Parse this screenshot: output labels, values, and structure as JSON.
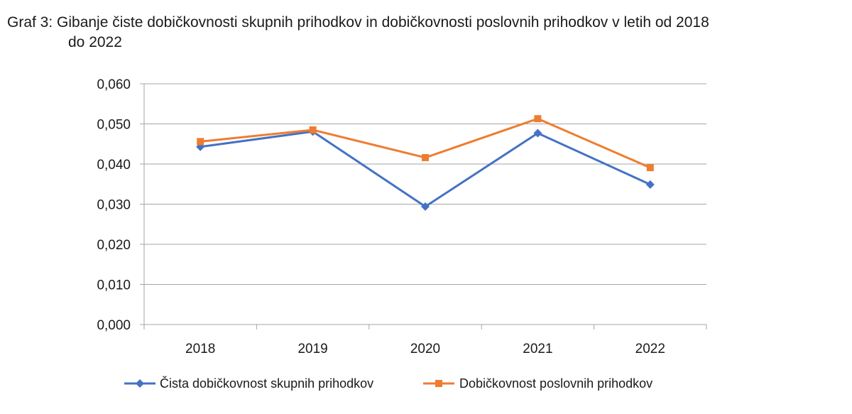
{
  "chart_data": {
    "type": "line",
    "title_line1": "Graf 3: Gibanje čiste dobičkovnosti skupnih prihodkov in dobičkovnosti poslovnih prihodkov v letih od 2018",
    "title_line2": "do 2022",
    "categories": [
      "2018",
      "2019",
      "2020",
      "2021",
      "2022"
    ],
    "ylim": [
      0,
      0.06
    ],
    "yticks": [
      0.0,
      0.01,
      0.02,
      0.03,
      0.04,
      0.05,
      0.06
    ],
    "ytick_labels": [
      "0,000",
      "0,010",
      "0,020",
      "0,030",
      "0,040",
      "0,050",
      "0,060"
    ],
    "grid": true,
    "legend_position": "bottom",
    "series": [
      {
        "name": "Čista dobičkovnost skupnih prihodkov",
        "color": "#4472c4",
        "marker": "diamond",
        "values": [
          0.0443,
          0.0481,
          0.0294,
          0.0477,
          0.0349
        ]
      },
      {
        "name": "Dobičkovnost poslovnih prihodkov",
        "color": "#ed7d31",
        "marker": "square",
        "values": [
          0.0456,
          0.0485,
          0.0416,
          0.0513,
          0.0391
        ]
      }
    ]
  }
}
